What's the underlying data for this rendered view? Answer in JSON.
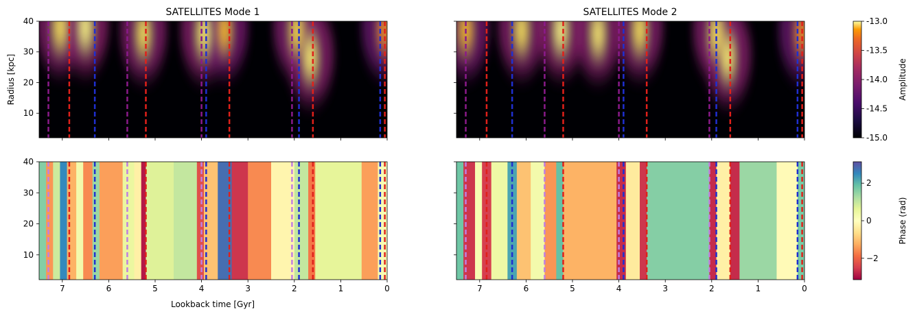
{
  "figure": {
    "titles": [
      "SATELLITES Mode 1",
      "SATELLITES Mode 2"
    ],
    "xlabel": "Lookback time [Gyr]",
    "ylabel": "Radius [kpc]"
  },
  "chart_data": [
    {
      "type": "heatmap",
      "title": "SATELLITES Mode 1",
      "quantity": "Amplitude",
      "xlabel": "Lookback time [Gyr]",
      "ylabel": "Radius [kpc]",
      "xlim": [
        7.5,
        0
      ],
      "ylim": [
        2,
        40
      ],
      "xticks": [
        7,
        6,
        5,
        4,
        3,
        2,
        1,
        0
      ],
      "yticks": [
        10,
        20,
        30,
        40
      ],
      "colormap": "inferno",
      "hot_spots": [
        {
          "t": 7.05,
          "r": 38,
          "level": 0.9
        },
        {
          "t": 6.5,
          "r": 38,
          "level": 1.0
        },
        {
          "t": 5.25,
          "r": 36,
          "level": 0.9
        },
        {
          "t": 3.95,
          "r": 36,
          "level": 0.95
        },
        {
          "t": 3.5,
          "r": 37,
          "level": 0.7
        },
        {
          "t": 1.95,
          "r": 37,
          "level": 0.85
        },
        {
          "t": 1.65,
          "r": 28,
          "level": 0.95
        },
        {
          "t": 0.05,
          "r": 37,
          "level": 0.5
        }
      ],
      "event_lines": [
        {
          "t": 7.3,
          "color": "#8a1a8a"
        },
        {
          "t": 6.85,
          "color": "#e0201a"
        },
        {
          "t": 6.3,
          "color": "#1f2fd0"
        },
        {
          "t": 5.6,
          "color": "#8a1a8a"
        },
        {
          "t": 5.2,
          "color": "#e0201a"
        },
        {
          "t": 4.0,
          "color": "#8a1a8a"
        },
        {
          "t": 3.9,
          "color": "#1f2fd0"
        },
        {
          "t": 3.4,
          "color": "#e0201a"
        },
        {
          "t": 2.05,
          "color": "#8a1a8a"
        },
        {
          "t": 1.9,
          "color": "#1f2fd0"
        },
        {
          "t": 1.6,
          "color": "#e0201a"
        },
        {
          "t": 0.15,
          "color": "#1f2fd0"
        },
        {
          "t": 0.05,
          "color": "#e0201a"
        }
      ]
    },
    {
      "type": "heatmap",
      "title": "SATELLITES Mode 2",
      "quantity": "Amplitude",
      "xlim": [
        7.5,
        0
      ],
      "ylim": [
        2,
        40
      ],
      "xticks": [
        7,
        6,
        5,
        4,
        3,
        2,
        1,
        0
      ],
      "yticks": [
        10,
        20,
        30,
        40
      ],
      "colormap": "inferno",
      "hot_spots": [
        {
          "t": 7.3,
          "r": 37,
          "level": 0.7
        },
        {
          "t": 6.1,
          "r": 37,
          "level": 0.9
        },
        {
          "t": 5.25,
          "r": 37,
          "level": 1.0
        },
        {
          "t": 4.45,
          "r": 36,
          "level": 0.95
        },
        {
          "t": 3.55,
          "r": 37,
          "level": 0.9
        },
        {
          "t": 1.9,
          "r": 36,
          "level": 0.9
        },
        {
          "t": 1.65,
          "r": 28,
          "level": 0.95
        },
        {
          "t": 0.05,
          "r": 36,
          "level": 0.5
        }
      ],
      "event_lines": [
        {
          "t": 7.3,
          "color": "#8a1a8a"
        },
        {
          "t": 6.85,
          "color": "#e0201a"
        },
        {
          "t": 6.3,
          "color": "#1f2fd0"
        },
        {
          "t": 5.6,
          "color": "#8a1a8a"
        },
        {
          "t": 5.2,
          "color": "#e0201a"
        },
        {
          "t": 4.0,
          "color": "#8a1a8a"
        },
        {
          "t": 3.9,
          "color": "#1f2fd0"
        },
        {
          "t": 3.4,
          "color": "#e0201a"
        },
        {
          "t": 2.05,
          "color": "#8a1a8a"
        },
        {
          "t": 1.9,
          "color": "#1f2fd0"
        },
        {
          "t": 1.6,
          "color": "#e0201a"
        },
        {
          "t": 0.15,
          "color": "#1f2fd0"
        },
        {
          "t": 0.05,
          "color": "#e0201a"
        }
      ]
    },
    {
      "type": "heatmap",
      "quantity": "Phase (rad)",
      "xlabel": "Lookback time [Gyr]",
      "xlim": [
        7.5,
        0
      ],
      "ylim": [
        2,
        40
      ],
      "xticks": [
        7,
        6,
        5,
        4,
        3,
        2,
        1,
        0
      ],
      "yticks": [
        10,
        20,
        30,
        40
      ],
      "colormap": "Spectral",
      "phase_bands": [
        {
          "t0": 7.5,
          "t1": 7.35,
          "phase": 1.6
        },
        {
          "t0": 7.35,
          "t1": 7.2,
          "phase": -1.5
        },
        {
          "t0": 7.2,
          "t1": 7.05,
          "phase": 0.9
        },
        {
          "t0": 7.05,
          "t1": 6.9,
          "phase": 2.5
        },
        {
          "t0": 6.9,
          "t1": 6.7,
          "phase": -1.2
        },
        {
          "t0": 6.7,
          "t1": 6.55,
          "phase": 0.3
        },
        {
          "t0": 6.55,
          "t1": 6.35,
          "phase": -1.6
        },
        {
          "t0": 6.35,
          "t1": 6.2,
          "phase": 1.4
        },
        {
          "t0": 6.2,
          "t1": 5.7,
          "phase": -1.4
        },
        {
          "t0": 5.7,
          "t1": 5.45,
          "phase": 0.5
        },
        {
          "t0": 5.45,
          "t1": 5.3,
          "phase": -0.3
        },
        {
          "t0": 5.3,
          "t1": 5.2,
          "phase": -2.9
        },
        {
          "t0": 5.2,
          "t1": 4.6,
          "phase": 0.7
        },
        {
          "t0": 4.6,
          "t1": 4.1,
          "phase": 1.0
        },
        {
          "t0": 4.1,
          "t1": 3.95,
          "phase": -2.3
        },
        {
          "t0": 3.95,
          "t1": 3.65,
          "phase": -1.0
        },
        {
          "t0": 3.65,
          "t1": 3.35,
          "phase": 2.8
        },
        {
          "t0": 3.35,
          "t1": 3.0,
          "phase": -2.6
        },
        {
          "t0": 3.0,
          "t1": 2.5,
          "phase": -1.6
        },
        {
          "t0": 2.5,
          "t1": 2.0,
          "phase": -0.2
        },
        {
          "t0": 2.0,
          "t1": 1.7,
          "phase": 1.0
        },
        {
          "t0": 1.7,
          "t1": 1.55,
          "phase": -1.8
        },
        {
          "t0": 1.55,
          "t1": 0.55,
          "phase": 0.6
        },
        {
          "t0": 0.55,
          "t1": 0.2,
          "phase": -1.4
        },
        {
          "t0": 0.2,
          "t1": 0.0,
          "phase": 0.2
        }
      ],
      "event_lines": [
        {
          "t": 7.3,
          "color": "#c080e0"
        },
        {
          "t": 6.85,
          "color": "#e0201a"
        },
        {
          "t": 6.3,
          "color": "#1f2fd0"
        },
        {
          "t": 5.6,
          "color": "#c080e0"
        },
        {
          "t": 5.2,
          "color": "#e0201a"
        },
        {
          "t": 4.0,
          "color": "#c080e0"
        },
        {
          "t": 3.9,
          "color": "#1f2fd0"
        },
        {
          "t": 3.4,
          "color": "#e0201a"
        },
        {
          "t": 2.05,
          "color": "#c080e0"
        },
        {
          "t": 1.9,
          "color": "#1f2fd0"
        },
        {
          "t": 1.6,
          "color": "#e0201a"
        },
        {
          "t": 0.15,
          "color": "#1f2fd0"
        },
        {
          "t": 0.05,
          "color": "#e0201a"
        }
      ]
    },
    {
      "type": "heatmap",
      "quantity": "Phase (rad)",
      "xlim": [
        7.5,
        0
      ],
      "ylim": [
        2,
        40
      ],
      "xticks": [
        7,
        6,
        5,
        4,
        3,
        2,
        1,
        0
      ],
      "yticks": [
        10,
        20,
        30,
        40
      ],
      "colormap": "Spectral",
      "phase_bands": [
        {
          "t0": 7.5,
          "t1": 7.35,
          "phase": 1.8
        },
        {
          "t0": 7.35,
          "t1": 7.1,
          "phase": -2.6
        },
        {
          "t0": 7.1,
          "t1": 6.95,
          "phase": 0.2
        },
        {
          "t0": 6.95,
          "t1": 6.75,
          "phase": -2.5
        },
        {
          "t0": 6.75,
          "t1": 6.4,
          "phase": 0.4
        },
        {
          "t0": 6.4,
          "t1": 6.2,
          "phase": 2.2
        },
        {
          "t0": 6.2,
          "t1": 5.9,
          "phase": -1.0
        },
        {
          "t0": 5.9,
          "t1": 5.6,
          "phase": 0.3
        },
        {
          "t0": 5.6,
          "t1": 5.35,
          "phase": -1.5
        },
        {
          "t0": 5.35,
          "t1": 5.2,
          "phase": 1.9
        },
        {
          "t0": 5.2,
          "t1": 4.05,
          "phase": -1.2
        },
        {
          "t0": 4.05,
          "t1": 3.85,
          "phase": -2.7
        },
        {
          "t0": 3.85,
          "t1": 3.55,
          "phase": -0.4
        },
        {
          "t0": 3.55,
          "t1": 3.4,
          "phase": -2.6
        },
        {
          "t0": 3.4,
          "t1": 2.05,
          "phase": 1.6
        },
        {
          "t0": 2.05,
          "t1": 1.9,
          "phase": -2.7
        },
        {
          "t0": 1.9,
          "t1": 1.6,
          "phase": -0.3
        },
        {
          "t0": 1.6,
          "t1": 1.4,
          "phase": -2.7
        },
        {
          "t0": 1.4,
          "t1": 0.6,
          "phase": 1.4
        },
        {
          "t0": 0.6,
          "t1": 0.15,
          "phase": -0.1
        },
        {
          "t0": 0.15,
          "t1": 0.0,
          "phase": 1.7
        }
      ],
      "event_lines": [
        {
          "t": 7.3,
          "color": "#c080e0"
        },
        {
          "t": 6.85,
          "color": "#e0201a"
        },
        {
          "t": 6.3,
          "color": "#1f2fd0"
        },
        {
          "t": 5.6,
          "color": "#c080e0"
        },
        {
          "t": 5.2,
          "color": "#e0201a"
        },
        {
          "t": 4.0,
          "color": "#c080e0"
        },
        {
          "t": 3.9,
          "color": "#1f2fd0"
        },
        {
          "t": 3.4,
          "color": "#e0201a"
        },
        {
          "t": 2.05,
          "color": "#c080e0"
        },
        {
          "t": 1.9,
          "color": "#1f2fd0"
        },
        {
          "t": 1.6,
          "color": "#e0201a"
        },
        {
          "t": 0.15,
          "color": "#1f2fd0"
        },
        {
          "t": 0.05,
          "color": "#e0201a"
        }
      ]
    }
  ],
  "colorbars": [
    {
      "label": "Amplitude",
      "colormap": "inferno",
      "range": [
        -15.0,
        -13.0
      ],
      "ticks": [
        "-13.0",
        "-13.5",
        "-14.0",
        "-14.5",
        "-15.0"
      ],
      "tick_values": [
        -13.0,
        -13.5,
        -14.0,
        -14.5,
        -15.0
      ]
    },
    {
      "label": "Phase (rad)",
      "colormap": "Spectral",
      "range": [
        -3.14,
        3.14
      ],
      "ticks": [
        "2",
        "0",
        "−2"
      ],
      "tick_values": [
        2,
        0,
        -2
      ]
    }
  ]
}
